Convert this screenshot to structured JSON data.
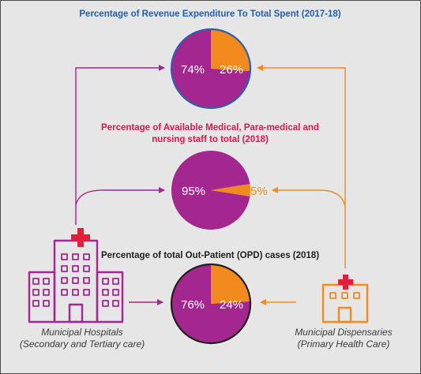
{
  "colors": {
    "purple": "#a3278f",
    "orange": "#f28a1d",
    "red": "#e11f3a",
    "blue": "#2e5fae",
    "background": "#e6e6e6"
  },
  "headings": {
    "revenue": "Percentage of Revenue Expenditure To Total Spent (2017-18)",
    "staff": "Percentage of Available Medical, Para-medical and nursing staff to total (2018)",
    "opd": "Percentage of total Out-Patient (OPD) cases (2018)"
  },
  "nodes": {
    "hospitals": {
      "line1": "Municipal Hospitals",
      "line2": "(Secondary and Tertiary care)",
      "icon": "hospital-building-icon"
    },
    "dispensaries": {
      "line1": "Municipal Dispensaries",
      "line2": "(Primary Health Care)",
      "icon": "clinic-building-icon"
    }
  },
  "pies": [
    {
      "id": "revenue",
      "hospitals_value": 74,
      "dispensaries_value": 26,
      "hospitals_label": "74%",
      "dispensaries_label": "26%",
      "border": "#2e5fae"
    },
    {
      "id": "staff",
      "hospitals_value": 95,
      "dispensaries_value": 5,
      "hospitals_label": "95%",
      "dispensaries_label": "5%",
      "border": "none"
    },
    {
      "id": "opd",
      "hospitals_value": 76,
      "dispensaries_value": 24,
      "hospitals_label": "76%",
      "dispensaries_label": "24%",
      "border": "#1e1e1e"
    }
  ]
}
